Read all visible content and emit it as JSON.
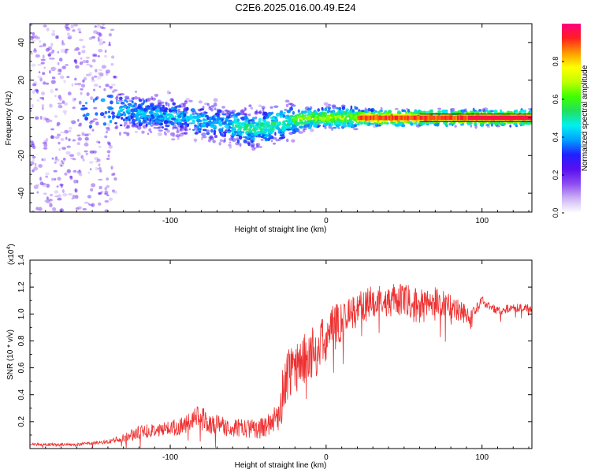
{
  "page": {
    "title": "C2E6.2025.016.00.49.E24"
  },
  "chart_data": [
    {
      "type": "heatmap",
      "title": "C2E6.2025.016.00.49.E24",
      "xlabel": "Height of straight line (km)",
      "ylabel": "Frequency (Hz)",
      "xlim": [
        -190,
        132
      ],
      "ylim": [
        -50,
        50
      ],
      "xticks": [
        -100,
        0,
        100
      ],
      "yticks": [
        -40,
        -20,
        0,
        20,
        40
      ],
      "colorbar": {
        "label": "Normalized spectral amplitude",
        "range": [
          0,
          1
        ],
        "ticks": [
          0.0,
          0.2,
          0.4,
          0.6,
          0.8
        ],
        "tick_labels": [
          "0.0",
          "0.2",
          "0.4",
          "0.6",
          "0.8"
        ],
        "colors": [
          "#ffffff",
          "#cdb3f5",
          "#8c4cf0",
          "#5a0ff0",
          "#2020ff",
          "#00a0ff",
          "#00f0f0",
          "#20e060",
          "#40ff00",
          "#c0ff00",
          "#ffff00",
          "#ff9900",
          "#ff2020",
          "#ff0080"
        ]
      },
      "ridge": {
        "x": [
          -190,
          -160,
          -140,
          -120,
          -100,
          -80,
          -60,
          -50,
          -40,
          -30,
          -20,
          -10,
          0,
          20,
          40,
          60,
          80,
          100,
          132
        ],
        "y": [
          0,
          0,
          5,
          3,
          1,
          -2,
          -4,
          -6,
          -5,
          -3,
          -1,
          0,
          0,
          0,
          0,
          0,
          0,
          0,
          0
        ]
      }
    },
    {
      "type": "line",
      "xlabel": "Height of straight line (km)",
      "ylabel": "SNR (10 * v/v)",
      "scale_label": "(x10",
      "scale_exp": "4",
      "scale_close": ")",
      "xlim": [
        -190,
        132
      ],
      "ylim": [
        0,
        14000
      ],
      "xticks": [
        -100,
        0,
        100
      ],
      "yticks": [
        2000,
        4000,
        6000,
        8000,
        10000,
        12000,
        14000
      ],
      "ytick_labels": [
        "0.2",
        "0.4",
        "0.6",
        "0.8",
        "1.0",
        "1.2",
        "1.4"
      ],
      "series": [
        {
          "name": "SNR",
          "color": "#ee3030",
          "x": [
            -190,
            -160,
            -140,
            -130,
            -120,
            -110,
            -100,
            -90,
            -80,
            -75,
            -70,
            -60,
            -50,
            -40,
            -35,
            -30,
            -28,
            -25,
            -20,
            -15,
            -10,
            -5,
            0,
            5,
            10,
            20,
            30,
            40,
            50,
            60,
            70,
            80,
            90,
            95,
            100,
            110,
            120,
            132
          ],
          "y": [
            300,
            300,
            500,
            800,
            1200,
            1400,
            1500,
            1800,
            2500,
            1800,
            1800,
            1500,
            1500,
            1500,
            2000,
            2500,
            4000,
            5500,
            6000,
            6500,
            7000,
            7500,
            8000,
            9000,
            9500,
            10500,
            11000,
            11000,
            11000,
            10500,
            11000,
            10500,
            10000,
            10000,
            11000,
            10200,
            10500,
            10400
          ],
          "noise": [
            100,
            100,
            150,
            300,
            500,
            500,
            600,
            700,
            900,
            800,
            700,
            700,
            700,
            800,
            800,
            1500,
            2000,
            2000,
            2000,
            1900,
            2000,
            2000,
            1900,
            1800,
            1500,
            1200,
            1200,
            1200,
            1300,
            1300,
            1200,
            1000,
            900,
            500,
            400,
            350,
            300,
            300
          ]
        }
      ]
    }
  ]
}
